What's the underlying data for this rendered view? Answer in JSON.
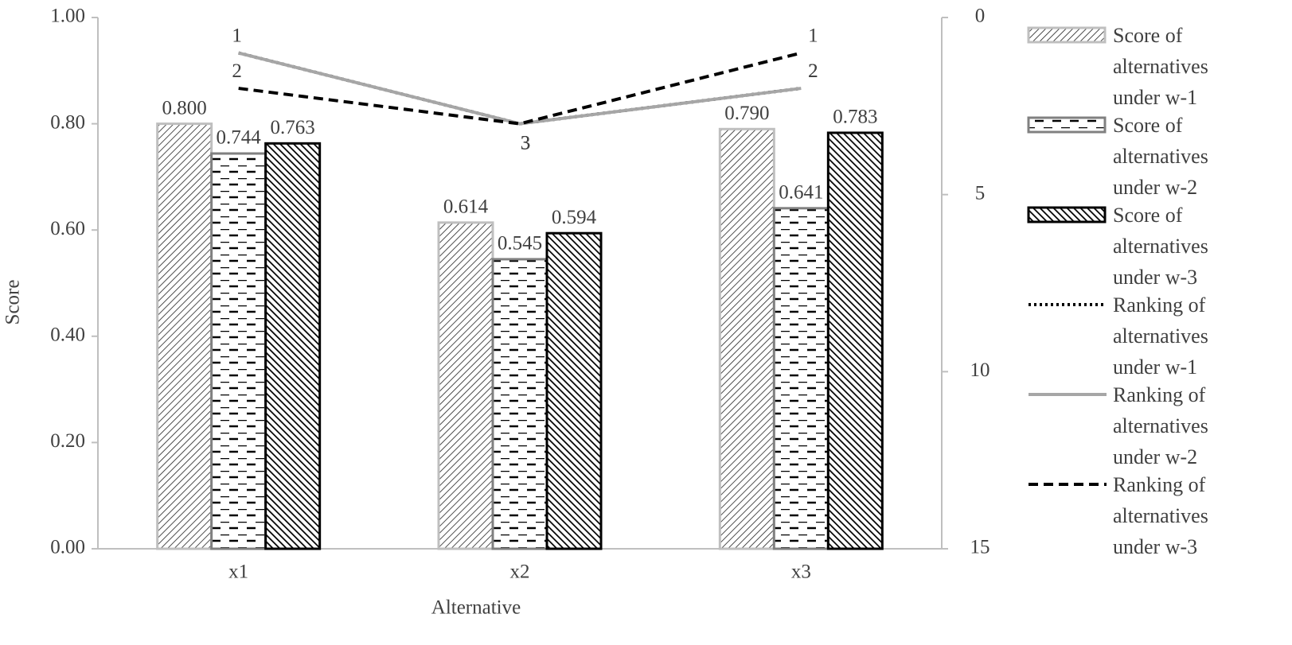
{
  "chart_data": {
    "type": "bar",
    "xlabel": "Alternative",
    "ylabel": "Score",
    "categories": [
      "x1",
      "x2",
      "x3"
    ],
    "ylim": [
      0,
      1
    ],
    "yticks": [
      {
        "value": 0,
        "label": "0.00"
      },
      {
        "value": 0.2,
        "label": "0.20"
      },
      {
        "value": 0.4,
        "label": "0.40"
      },
      {
        "value": 0.6,
        "label": "0.60"
      },
      {
        "value": 0.8,
        "label": "0.80"
      },
      {
        "value": 1,
        "label": "1.00"
      }
    ],
    "y2lim": [
      0,
      15
    ],
    "y2ticks": [
      0,
      5,
      10,
      15
    ],
    "y2_inverted": true,
    "legend": "right",
    "series": [
      {
        "name": "Score of alternatives under w-1",
        "type": "bar",
        "color": "#bfbfbf",
        "pattern": "fine-hatch",
        "values": [
          0.8,
          0.614,
          0.79
        ],
        "value_labels": [
          "0.800",
          "0.614",
          "0.790"
        ]
      },
      {
        "name": "Score of alternatives under w-2",
        "type": "bar",
        "color": "#808080",
        "pattern": "dashes",
        "values": [
          0.744,
          0.545,
          0.641
        ],
        "value_labels": [
          "0.744",
          "0.545",
          "0.641"
        ]
      },
      {
        "name": "Score of alternatives under w-3",
        "type": "bar",
        "color": "#000000",
        "pattern": "dark-hatch",
        "values": [
          0.763,
          0.594,
          0.783
        ],
        "value_labels": [
          "0.763",
          "0.594",
          "0.783"
        ]
      },
      {
        "name": "Ranking of alternatives under w-1",
        "type": "line",
        "axis": "y2",
        "color": "#000000",
        "style": "dotted",
        "values": [
          1,
          3,
          2
        ]
      },
      {
        "name": "Ranking of alternatives under w-2",
        "type": "line",
        "axis": "y2",
        "color": "#a6a6a6",
        "style": "solid",
        "values": [
          1,
          3,
          2
        ]
      },
      {
        "name": "Ranking of alternatives under w-3",
        "type": "line",
        "axis": "y2",
        "color": "#000000",
        "style": "dashed",
        "values": [
          2,
          3,
          1
        ]
      }
    ]
  }
}
